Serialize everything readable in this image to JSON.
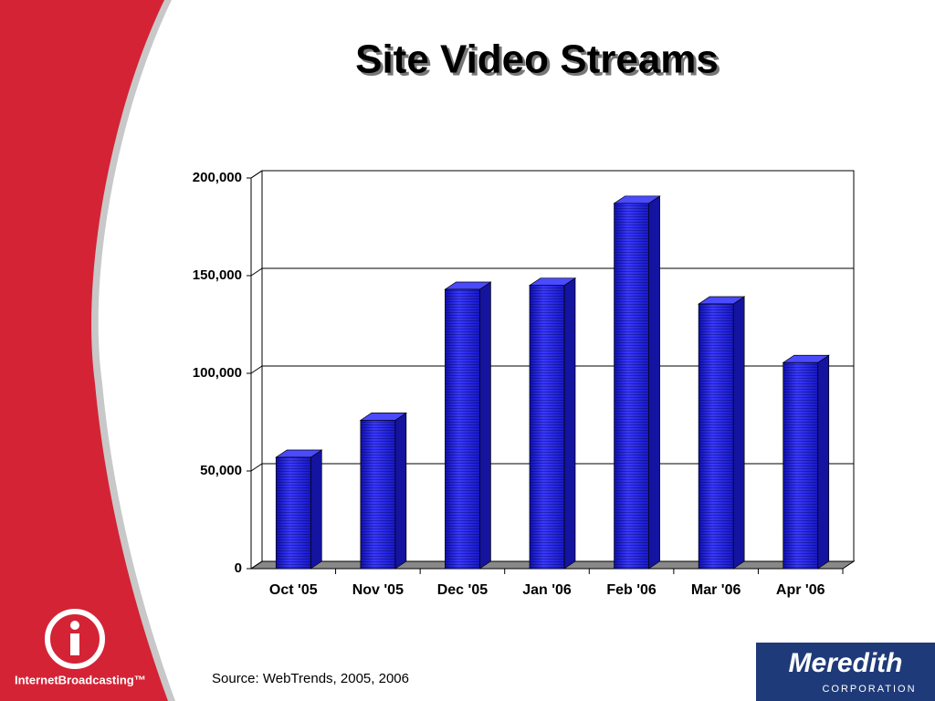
{
  "chart_data": {
    "type": "bar3d",
    "title": "Site Video Streams",
    "categories": [
      "Oct '05",
      "Nov '05",
      "Dec '05",
      "Jan '06",
      "Feb '06",
      "Mar '06",
      "Apr '06"
    ],
    "values": [
      57000,
      76000,
      143000,
      145000,
      187000,
      135500,
      105500
    ],
    "color": "#2424e8",
    "ylim": [
      0,
      200000
    ],
    "yticks": [
      0,
      {
        "value": 50000,
        "label": "50,000"
      },
      {
        "value": 100000,
        "label": "100,000"
      },
      {
        "value": 150000,
        "label": "150,000"
      },
      {
        "value": 200000,
        "label": "200,000"
      }
    ],
    "grid": true,
    "source": "Source: WebTrends, 2005, 2006"
  },
  "branding": {
    "left_logo": "InternetBroadcasting™",
    "right_logo": "Meredith",
    "right_logo_sub": "CORPORATION"
  }
}
